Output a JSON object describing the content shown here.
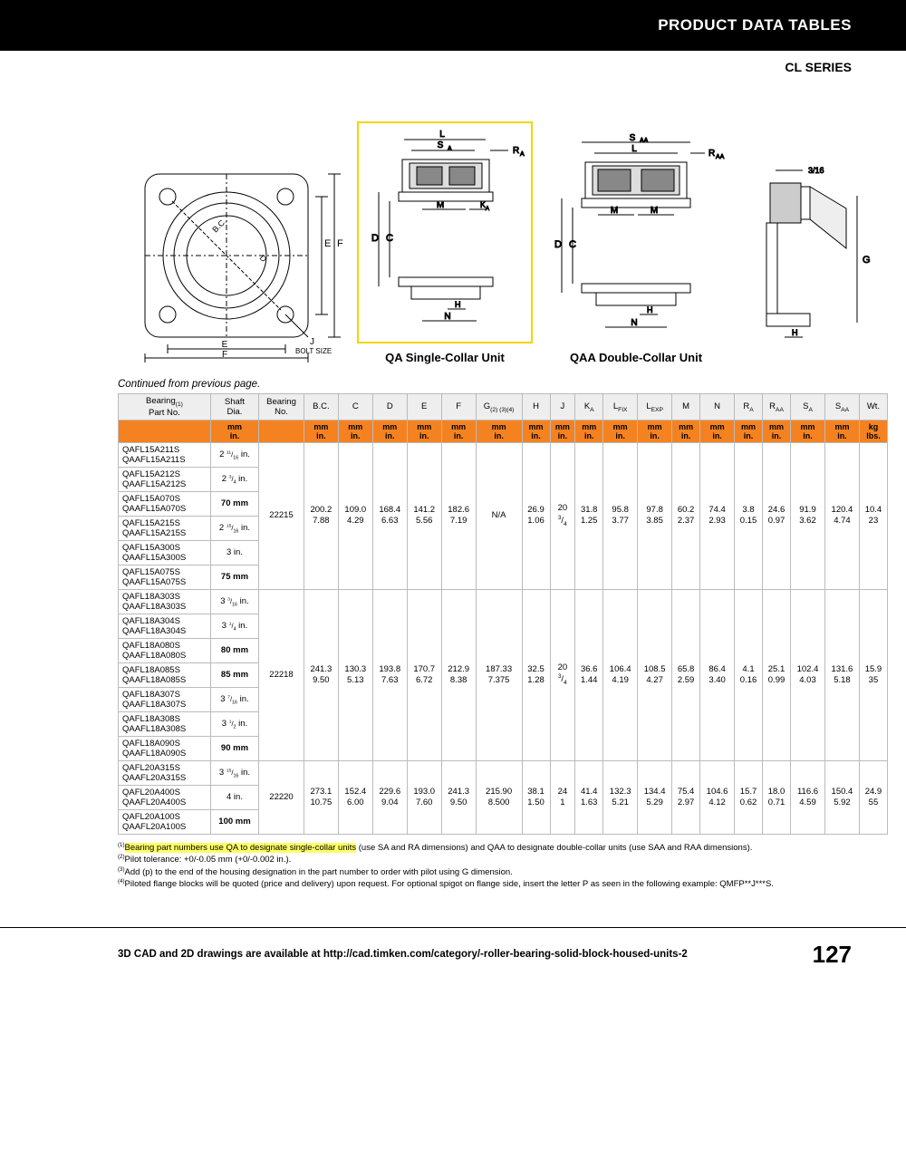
{
  "header": {
    "title": "PRODUCT DATA TABLES",
    "series": "CL SERIES"
  },
  "diagrams": {
    "flange_label_e": "E",
    "flange_label_f": "F",
    "flange_label_j": "J",
    "flange_bolt": "BOLT SIZE",
    "qa_caption": "QA Single-Collar Unit",
    "qaa_caption": "QAA Double-Collar Unit",
    "labels": {
      "L": "L",
      "SA": "S",
      "RA": "R",
      "SAA": "S",
      "RAA": "R",
      "M": "M",
      "KA": "K",
      "D": "D",
      "C": "C",
      "H": "H",
      "N": "N",
      "G": "G",
      "three16": "3/16"
    }
  },
  "continued": "Continued from previous page.",
  "table": {
    "headers1": [
      "Bearing\nPart No.",
      "Shaft\nDia.",
      "Bearing\nNo.",
      "B.C.",
      "C",
      "D",
      "E",
      "F",
      "G",
      "H",
      "J",
      "K",
      "L",
      "L",
      "M",
      "N",
      "R",
      "R",
      "S",
      "S",
      "Wt."
    ],
    "headers1_sub": [
      "(1)",
      "",
      "",
      "",
      "",
      "",
      "",
      "",
      "(2) (3)(4)",
      "",
      "",
      "A",
      "FIX",
      "EXP",
      "",
      "",
      "A",
      "AA",
      "A",
      "AA",
      ""
    ],
    "headers2": [
      "",
      "mm\nin.",
      "",
      "mm\nin.",
      "mm\nin.",
      "mm\nin.",
      "mm\nin.",
      "mm\nin.",
      "mm\nin.",
      "mm\nin.",
      "mm\nin.",
      "mm\nin.",
      "mm\nin.",
      "mm\nin.",
      "mm\nin.",
      "mm\nin.",
      "mm\nin.",
      "mm\nin.",
      "mm\nin.",
      "mm\nin.",
      "kg\nlbs."
    ],
    "groups": [
      {
        "bearingNo": "22215",
        "rows": [
          {
            "part": "QAFL15A211S\nQAAFL15A211S",
            "shaft": "2 11/16 in.",
            "bold": false
          },
          {
            "part": "QAFL15A212S\nQAAFL15A212S",
            "shaft": "2 3/4 in.",
            "bold": false
          },
          {
            "part": "QAFL15A070S\nQAAFL15A070S",
            "shaft": "70 mm",
            "bold": true
          },
          {
            "part": "QAFL15A215S\nQAAFL15A215S",
            "shaft": "2 15/16 in.",
            "bold": false
          },
          {
            "part": "QAFL15A300S\nQAAFL15A300S",
            "shaft": "3 in.",
            "bold": false
          },
          {
            "part": "QAFL15A075S\nQAAFL15A075S",
            "shaft": "75 mm",
            "bold": true
          }
        ],
        "vals": [
          "200.2\n7.88",
          "109.0\n4.29",
          "168.4\n6.63",
          "141.2\n5.56",
          "182.6\n7.19",
          "N/A",
          "26.9\n1.06",
          "20\n3/4",
          "31.8\n1.25",
          "95.8\n3.77",
          "97.8\n3.85",
          "60.2\n2.37",
          "74.4\n2.93",
          "3.8\n0.15",
          "24.6\n0.97",
          "91.9\n3.62",
          "120.4\n4.74",
          "10.4\n23"
        ]
      },
      {
        "bearingNo": "22218",
        "rows": [
          {
            "part": "QAFL18A303S\nQAAFL18A303S",
            "shaft": "3 3/16 in.",
            "bold": false
          },
          {
            "part": "QAFL18A304S\nQAAFL18A304S",
            "shaft": "3 1/4 in.",
            "bold": false
          },
          {
            "part": "QAFL18A080S\nQAAFL18A080S",
            "shaft": "80 mm",
            "bold": true
          },
          {
            "part": "QAFL18A085S\nQAAFL18A085S",
            "shaft": "85 mm",
            "bold": true
          },
          {
            "part": "QAFL18A307S\nQAAFL18A307S",
            "shaft": "3 7/16 in.",
            "bold": false
          },
          {
            "part": "QAFL18A308S\nQAAFL18A308S",
            "shaft": "3 1/2 in.",
            "bold": false
          },
          {
            "part": "QAFL18A090S\nQAAFL18A090S",
            "shaft": "90 mm",
            "bold": true
          }
        ],
        "vals": [
          "241.3\n9.50",
          "130.3\n5.13",
          "193.8\n7.63",
          "170.7\n6.72",
          "212.9\n8.38",
          "187.33\n7.375",
          "32.5\n1.28",
          "20\n3/4",
          "36.6\n1.44",
          "106.4\n4.19",
          "108.5\n4.27",
          "65.8\n2.59",
          "86.4\n3.40",
          "4.1\n0.16",
          "25.1\n0.99",
          "102.4\n4.03",
          "131.6\n5.18",
          "15.9\n35"
        ]
      },
      {
        "bearingNo": "22220",
        "rows": [
          {
            "part": "QAFL20A315S\nQAAFL20A315S",
            "shaft": "3 15/16 in.",
            "bold": false
          },
          {
            "part": "QAFL20A400S\nQAAFL20A400S",
            "shaft": "4 in.",
            "bold": false
          },
          {
            "part": "QAFL20A100S\nQAAFL20A100S",
            "shaft": "100 mm",
            "bold": true
          }
        ],
        "vals": [
          "273.1\n10.75",
          "152.4\n6.00",
          "229.6\n9.04",
          "193.0\n7.60",
          "241.3\n9.50",
          "215.90\n8.500",
          "38.1\n1.50",
          "24\n1",
          "41.4\n1.63",
          "132.3\n5.21",
          "134.4\n5.29",
          "75.4\n2.97",
          "104.6\n4.12",
          "15.7\n0.62",
          "18.0\n0.71",
          "116.6\n4.59",
          "150.4\n5.92",
          "24.9\n55"
        ]
      }
    ]
  },
  "footnotes": {
    "f1a": "Bearing part numbers use QA to designate single-collar units",
    "f1b": "(use SA and RA dimensions) and QAA to designate double-collar units (use SAA and RAA dimensions).",
    "f2": "Pilot tolerance: +0/-0.05 mm (+0/-0.002 in.).",
    "f3": "Add (p) to the end of the housing designation in the part number to order with pilot using G dimension.",
    "f4": "Piloted flange blocks will be quoted (price and delivery) upon request. For optional spigot on flange side, insert the letter P as seen in the following example: QMFP**J***S."
  },
  "footer": {
    "text": "3D CAD and 2D drawings are available at http://cad.timken.com/category/-roller-bearing-solid-block-housed-units-2",
    "page": "127"
  },
  "colors": {
    "highlight": "#f4d400",
    "orange": "#f58220",
    "yellow_hl": "#ffff66"
  }
}
